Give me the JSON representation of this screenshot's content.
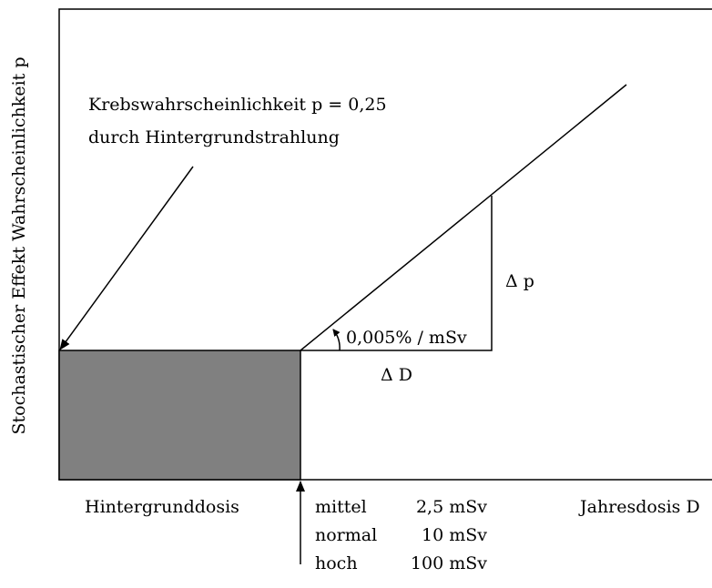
{
  "y_axis_label": "Stochastischer Effekt Wahrscheinlichkeit p",
  "annotation": {
    "line1": "Krebswahrscheinlichkeit p = 0,25",
    "line2": "durch Hintergrundstrahlung"
  },
  "delta_p": "Δ p",
  "slope": "0,005% / mSv",
  "delta_d": "Δ D",
  "background_label": "Hintergrunddosis",
  "x_axis_label": "Jahresdosis D",
  "doses": [
    {
      "level": "mittel",
      "dose": "2,5 mSv"
    },
    {
      "level": "normal",
      "dose": "10 mSv"
    },
    {
      "level": "hoch",
      "dose": "100 mSv"
    }
  ]
}
